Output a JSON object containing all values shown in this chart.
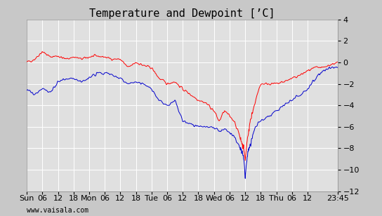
{
  "title": "Temperature and Dewpoint [’C]",
  "watermark": "www.vaisala.com",
  "ylim": [
    -12,
    4
  ],
  "yticks": [
    -12,
    -10,
    -8,
    -6,
    -4,
    -2,
    0,
    2,
    4
  ],
  "xtick_pos": [
    0,
    6,
    12,
    18,
    24,
    30,
    36,
    42,
    48,
    54,
    60,
    66,
    72,
    78,
    84,
    90,
    96,
    102,
    108,
    119.75
  ],
  "xtick_labels": [
    "Sun",
    "06",
    "12",
    "18",
    "Mon",
    "06",
    "12",
    "18",
    "Tue",
    "06",
    "12",
    "18",
    "Wed",
    "06",
    "12",
    "18",
    "Thu",
    "06",
    "12",
    "23:45"
  ],
  "xlim": [
    0,
    119.75
  ],
  "bg_color": "#c8c8c8",
  "plot_bg_color": "#e0e0e0",
  "grid_color": "#ffffff",
  "temp_color": "#ff0000",
  "dew_color": "#0000cc",
  "title_fontsize": 11,
  "tick_fontsize": 8,
  "watermark_fontsize": 7,
  "linewidth": 0.7,
  "temp_keypoints_t": [
    0,
    3,
    6,
    9,
    12,
    15,
    18,
    21,
    24,
    27,
    30,
    33,
    36,
    39,
    42,
    45,
    48,
    51,
    54,
    57,
    60,
    63,
    66,
    69,
    72,
    74,
    76,
    78,
    80,
    82,
    84,
    86,
    88,
    90,
    93,
    96,
    99,
    102,
    105,
    108,
    111,
    114,
    117,
    119.75
  ],
  "temp_keypoints_v": [
    0.0,
    0.3,
    1.0,
    0.5,
    0.6,
    0.3,
    0.5,
    0.3,
    0.5,
    0.6,
    0.5,
    0.3,
    0.3,
    -0.5,
    0.0,
    -0.3,
    -0.5,
    -1.5,
    -2.0,
    -1.8,
    -2.5,
    -3.0,
    -3.5,
    -3.8,
    -4.5,
    -5.5,
    -4.5,
    -5.0,
    -5.5,
    -7.0,
    -8.5,
    -5.5,
    -3.5,
    -2.0,
    -2.0,
    -2.0,
    -1.8,
    -1.5,
    -1.2,
    -0.8,
    -0.5,
    -0.5,
    -0.2,
    0.0
  ],
  "dew_keypoints_t": [
    0,
    3,
    6,
    9,
    12,
    15,
    18,
    21,
    24,
    27,
    30,
    33,
    36,
    39,
    42,
    45,
    48,
    51,
    54,
    57,
    60,
    63,
    66,
    69,
    72,
    74,
    76,
    78,
    80,
    82,
    84,
    86,
    88,
    90,
    93,
    96,
    99,
    102,
    105,
    108,
    111,
    114,
    117,
    119.75
  ],
  "dew_keypoints_v": [
    -2.5,
    -3.0,
    -2.5,
    -2.8,
    -1.8,
    -1.5,
    -1.5,
    -1.8,
    -1.5,
    -1.0,
    -1.0,
    -1.2,
    -1.5,
    -2.0,
    -1.8,
    -2.0,
    -2.5,
    -3.5,
    -4.0,
    -3.5,
    -5.5,
    -5.8,
    -6.0,
    -6.0,
    -6.0,
    -6.5,
    -6.2,
    -6.5,
    -7.0,
    -8.0,
    -9.2,
    -7.5,
    -6.0,
    -5.5,
    -5.0,
    -4.5,
    -4.0,
    -3.5,
    -3.0,
    -2.5,
    -1.5,
    -0.8,
    -0.5,
    -0.5
  ]
}
